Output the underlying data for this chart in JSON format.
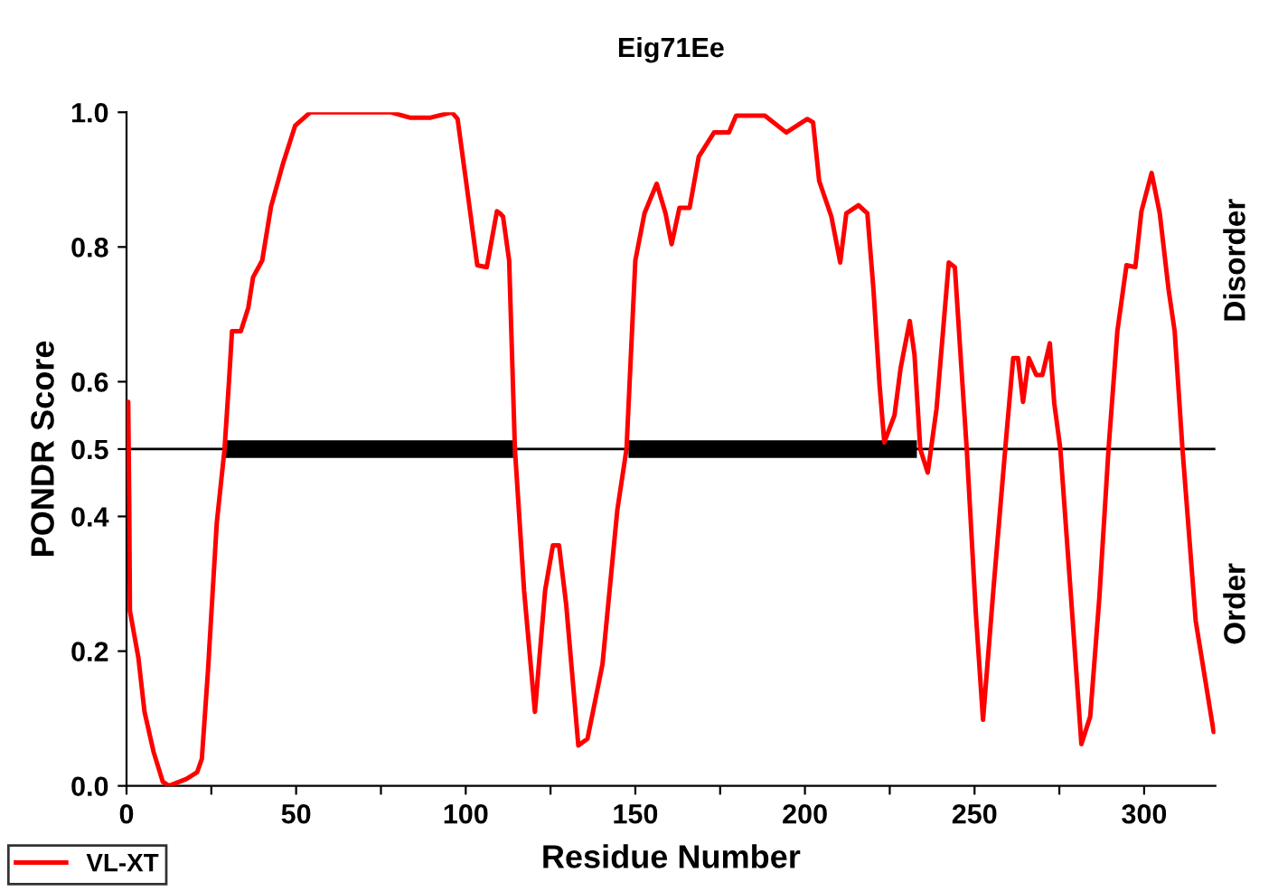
{
  "chart_data": {
    "type": "line",
    "title": "Eig71Ee",
    "xlabel": "Residue Number",
    "ylabel": "PONDR Score",
    "annotations": [
      "Disorder",
      "Order"
    ],
    "series": [
      {
        "color": "#000000",
        "x": [
          29,
          114,
          null,
          148,
          233
        ],
        "values": [
          0.5,
          0.5,
          null,
          0.5,
          0.5
        ]
      },
      {
        "name": "VL-XT",
        "color": "#ff0000",
        "x": [
          0.5,
          0.8,
          1,
          3.5,
          5.3,
          8,
          10.7,
          12.5,
          17.6,
          20.8,
          22.2,
          24,
          26.6,
          28.9,
          30.2,
          31.1,
          33.7,
          35.9,
          37.3,
          40,
          42.6,
          46.2,
          49.7,
          54.2,
          78,
          83.5,
          89.7,
          95.9,
          97.6,
          100.3,
          103.4,
          106.2,
          109.2,
          110.1,
          111,
          112.8,
          114.5,
          117.2,
          120.4,
          123.4,
          125.7,
          127.5,
          129.6,
          133.2,
          135.9,
          140.3,
          144.7,
          147.4,
          150,
          152.7,
          156.3,
          158.9,
          160.7,
          163,
          166,
          168.7,
          173.2,
          177.6,
          179.7,
          188.2,
          194.5,
          200.7,
          202.4,
          204.2,
          207.8,
          210.4,
          212.2,
          215.8,
          218.4,
          220.2,
          222,
          223.4,
          226.4,
          228.2,
          230.9,
          232.3,
          234,
          236.2,
          238.8,
          242.4,
          244.2,
          246,
          247.7,
          250.4,
          252.5,
          255.7,
          259.3,
          261.4,
          262.8,
          264.3,
          266,
          268.2,
          270,
          272.2,
          273.5,
          275.3,
          278.8,
          281.5,
          284.1,
          286.8,
          289.5,
          292.1,
          294.8,
          297.4,
          299.2,
          302.2,
          304.6,
          307.2,
          309,
          311.3,
          315.2,
          320.5
        ],
        "values": [
          0.57,
          0.42,
          0.26,
          0.19,
          0.11,
          0.05,
          0.006,
          0.0,
          0.01,
          0.02,
          0.04,
          0.17,
          0.39,
          0.5,
          0.6,
          0.675,
          0.675,
          0.71,
          0.755,
          0.78,
          0.86,
          0.925,
          0.98,
          1.0,
          1.0,
          0.992,
          0.992,
          1.0,
          0.99,
          0.89,
          0.773,
          0.77,
          0.853,
          0.85,
          0.845,
          0.78,
          0.5,
          0.29,
          0.11,
          0.29,
          0.357,
          0.357,
          0.27,
          0.06,
          0.07,
          0.18,
          0.41,
          0.5,
          0.78,
          0.85,
          0.894,
          0.85,
          0.804,
          0.858,
          0.858,
          0.934,
          0.97,
          0.97,
          0.995,
          0.995,
          0.97,
          0.99,
          0.985,
          0.898,
          0.845,
          0.777,
          0.85,
          0.862,
          0.85,
          0.737,
          0.595,
          0.51,
          0.55,
          0.62,
          0.69,
          0.64,
          0.5,
          0.465,
          0.56,
          0.777,
          0.77,
          0.63,
          0.5,
          0.255,
          0.098,
          0.3,
          0.515,
          0.635,
          0.635,
          0.57,
          0.635,
          0.61,
          0.61,
          0.657,
          0.568,
          0.5,
          0.255,
          0.062,
          0.103,
          0.28,
          0.5,
          0.675,
          0.773,
          0.77,
          0.853,
          0.91,
          0.85,
          0.737,
          0.675,
          0.5,
          0.245,
          0.08
        ]
      }
    ],
    "xlim": [
      0,
      321
    ],
    "ylim": [
      0,
      1
    ],
    "xticks": [
      0,
      {
        "value": 25,
        "label": null
      },
      50,
      {
        "value": 75,
        "label": null
      },
      100,
      {
        "value": 125,
        "label": null
      },
      150,
      {
        "value": 175,
        "label": null
      },
      200,
      {
        "value": 225,
        "label": null
      },
      250,
      {
        "value": 275,
        "label": null
      },
      300
    ],
    "yticks": [
      {
        "value": 0,
        "label": "0.0"
      },
      0.2,
      0.4,
      0.5,
      0.6,
      0.8,
      {
        "value": 1,
        "label": "1.0"
      }
    ],
    "ref_lines": [
      {
        "axis": "y",
        "value": 0.5,
        "color": "#000000"
      }
    ],
    "legend": "bottom left"
  }
}
